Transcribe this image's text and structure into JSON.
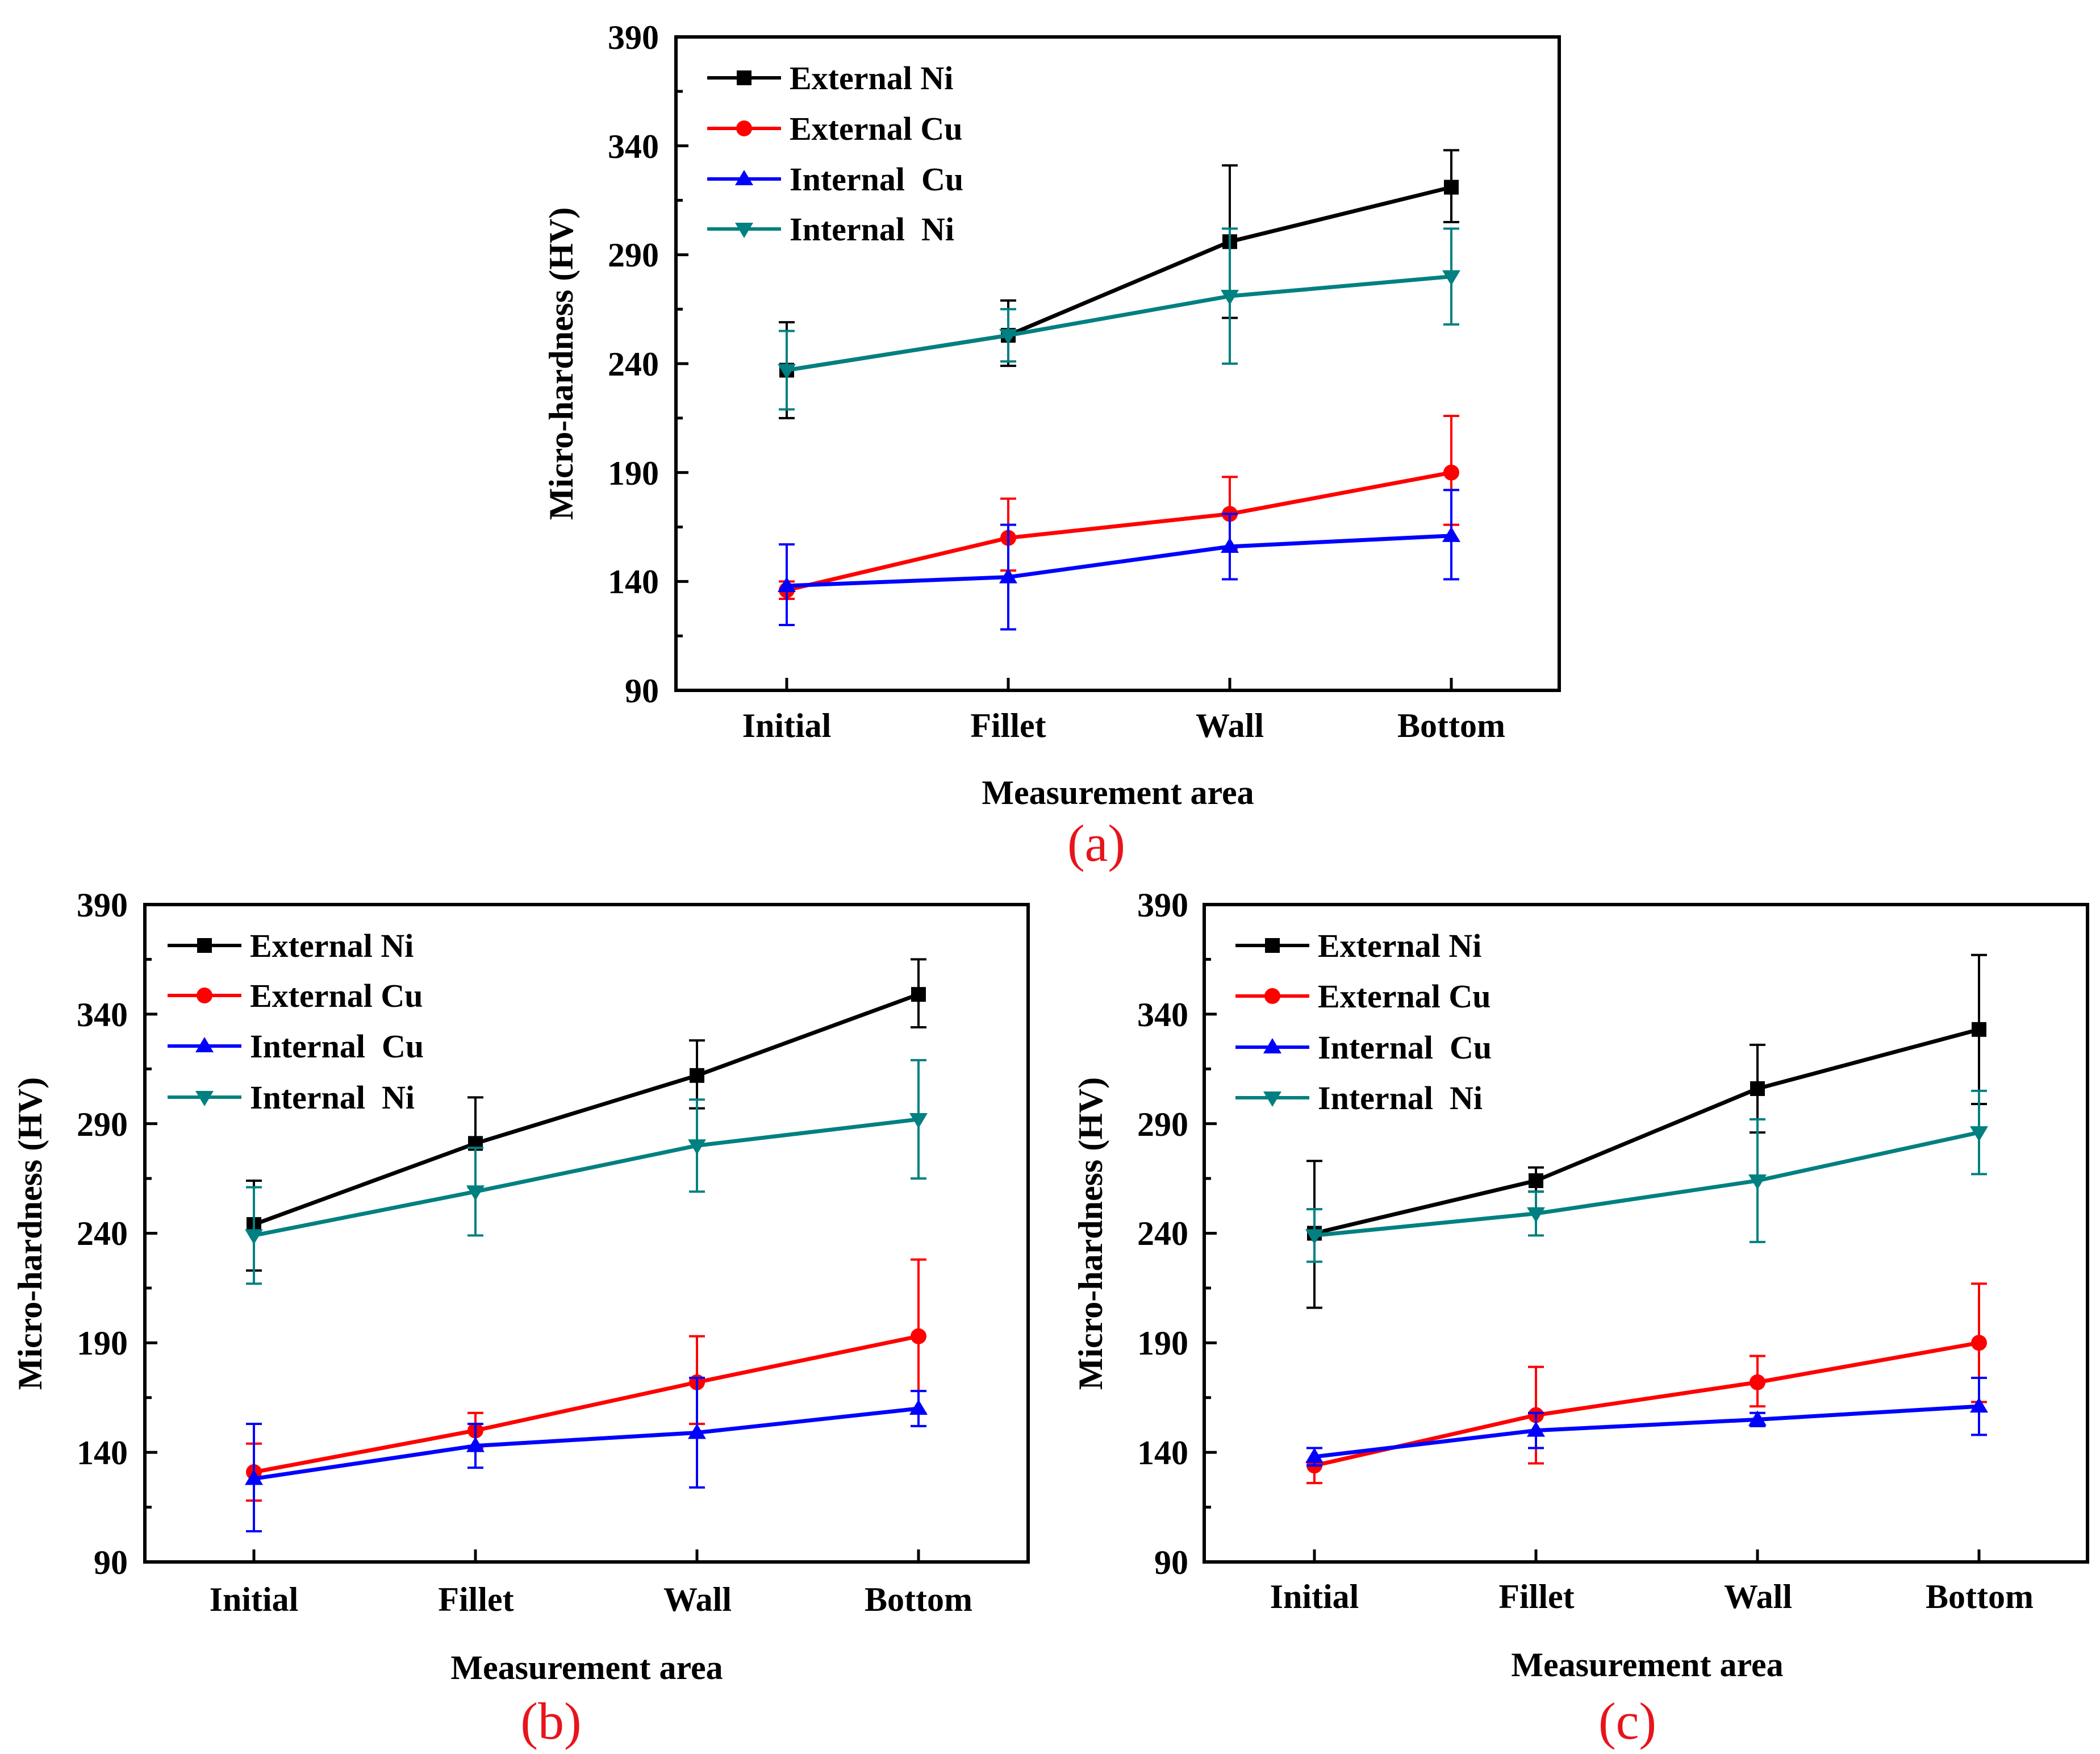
{
  "chart_data": [
    {
      "type": "line",
      "panel_label": "(a)",
      "xlabel": "Measurement area",
      "ylabel": "Micro-hardness (HV)",
      "ylim": [
        90,
        390
      ],
      "yticks": [
        90,
        140,
        190,
        240,
        290,
        340,
        390
      ],
      "categories": [
        "Initial",
        "Fillet",
        "Wall",
        "Bottom"
      ],
      "series": [
        {
          "name": "External Ni",
          "color": "#000000",
          "marker": "square",
          "values": [
            237,
            253,
            296,
            321
          ],
          "err_low": [
            22,
            14,
            35,
            16
          ],
          "err_high": [
            22,
            16,
            35,
            17
          ]
        },
        {
          "name": "External Cu",
          "color": "#ff0000",
          "marker": "circle",
          "values": [
            136,
            160,
            171,
            190
          ],
          "err_low": [
            4,
            15,
            16,
            24
          ],
          "err_high": [
            4,
            18,
            17,
            26
          ]
        },
        {
          "name": "Internal  Cu",
          "color": "#0000ff",
          "marker": "triangle-up",
          "values": [
            138,
            142,
            156,
            161
          ],
          "err_low": [
            18,
            24,
            15,
            20
          ],
          "err_high": [
            19,
            24,
            15,
            21
          ]
        },
        {
          "name": "Internal  Ni",
          "color": "#008080",
          "marker": "triangle-down",
          "values": [
            237,
            253,
            271,
            280
          ],
          "err_low": [
            18,
            12,
            31,
            22
          ],
          "err_high": [
            18,
            12,
            31,
            22
          ]
        }
      ]
    },
    {
      "type": "line",
      "panel_label": "(b)",
      "xlabel": "Measurement area",
      "ylabel": "Micro-hardness (HV)",
      "ylim": [
        90,
        390
      ],
      "yticks": [
        90,
        140,
        190,
        240,
        290,
        340,
        390
      ],
      "categories": [
        "Initial",
        "Fillet",
        "Wall",
        "Bottom"
      ],
      "series": [
        {
          "name": "External Ni",
          "color": "#000000",
          "marker": "square",
          "values": [
            244,
            281,
            312,
            349
          ],
          "err_low": [
            21,
            20,
            15,
            15
          ],
          "err_high": [
            20,
            21,
            16,
            16
          ]
        },
        {
          "name": "External Cu",
          "color": "#ff0000",
          "marker": "circle",
          "values": [
            131,
            150,
            172,
            193
          ],
          "err_low": [
            13,
            8,
            19,
            35
          ],
          "err_high": [
            13,
            8,
            21,
            35
          ]
        },
        {
          "name": "Internal  Cu",
          "color": "#0000ff",
          "marker": "triangle-up",
          "values": [
            128,
            143,
            149,
            160
          ],
          "err_low": [
            24,
            10,
            25,
            8
          ],
          "err_high": [
            25,
            10,
            25,
            8
          ]
        },
        {
          "name": "Internal  Ni",
          "color": "#008080",
          "marker": "triangle-down",
          "values": [
            239,
            259,
            280,
            292
          ],
          "err_low": [
            22,
            20,
            21,
            27
          ],
          "err_high": [
            22,
            20,
            21,
            27
          ]
        }
      ]
    },
    {
      "type": "line",
      "panel_label": "(c)",
      "xlabel": "Measurement area",
      "ylabel": "Micro-hardness (HV)",
      "ylim": [
        90,
        390
      ],
      "yticks": [
        90,
        140,
        190,
        240,
        290,
        340,
        390
      ],
      "categories": [
        "Initial",
        "Fillet",
        "Wall",
        "Bottom"
      ],
      "series": [
        {
          "name": "External Ni",
          "color": "#000000",
          "marker": "square",
          "values": [
            240,
            264,
            306,
            333
          ],
          "err_low": [
            34,
            5,
            20,
            34
          ],
          "err_high": [
            33,
            6,
            20,
            34
          ]
        },
        {
          "name": "External Cu",
          "color": "#ff0000",
          "marker": "circle",
          "values": [
            134,
            157,
            172,
            190
          ],
          "err_low": [
            8,
            22,
            11,
            27
          ],
          "err_high": [
            8,
            22,
            12,
            27
          ]
        },
        {
          "name": "Internal  Cu",
          "color": "#0000ff",
          "marker": "triangle-up",
          "values": [
            138,
            150,
            155,
            161
          ],
          "err_low": [
            4,
            8,
            3,
            13
          ],
          "err_high": [
            4,
            8,
            3,
            13
          ]
        },
        {
          "name": "Internal  Ni",
          "color": "#008080",
          "marker": "triangle-down",
          "values": [
            239,
            249,
            264,
            286
          ],
          "err_low": [
            12,
            10,
            28,
            19
          ],
          "err_high": [
            12,
            10,
            28,
            19
          ]
        }
      ]
    }
  ]
}
